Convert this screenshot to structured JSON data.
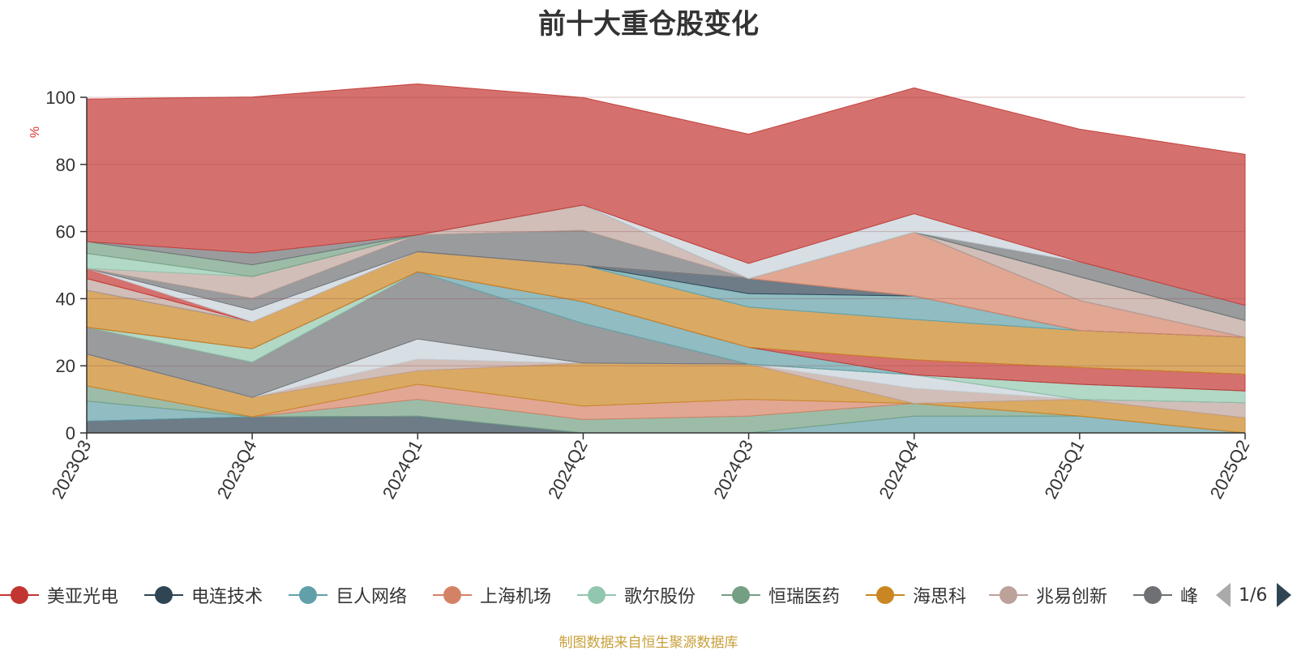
{
  "chart_data": {
    "type": "area",
    "stacked": true,
    "normalized_100": true,
    "title": "前十大重仓股变化",
    "ylabel": "%",
    "ylim": [
      0,
      100
    ],
    "yticks": [
      0,
      20,
      40,
      60,
      80,
      100
    ],
    "categories": [
      "2023Q3",
      "2023Q4",
      "2024Q1",
      "2024Q2",
      "2024Q3",
      "2024Q4",
      "2025Q1",
      "2025Q2"
    ],
    "grid": true,
    "legend_position": "bottom",
    "legend_page": "1/6",
    "legend_items": [
      {
        "name": "美亚光电",
        "color": "#c23531"
      },
      {
        "name": "电连技术",
        "color": "#2f4554"
      },
      {
        "name": "巨人网络",
        "color": "#61a0a8"
      },
      {
        "name": "上海机场",
        "color": "#d48265"
      },
      {
        "name": "歌尔股份",
        "color": "#91c7ae"
      },
      {
        "name": "恒瑞医药",
        "color": "#749f83"
      },
      {
        "name": "海思科",
        "color": "#ca8622"
      },
      {
        "name": "兆易创新",
        "color": "#bda29a"
      },
      {
        "name": "峰",
        "color": "#6e7074"
      }
    ],
    "layers": [
      {
        "color": "#2f4554",
        "values": [
          3.5,
          4.8,
          5.0,
          0,
          0,
          0,
          0,
          0
        ]
      },
      {
        "color": "#61a0a8",
        "values": [
          6.0,
          0,
          0,
          0,
          0,
          5.0,
          5.0,
          0
        ]
      },
      {
        "color": "#749f83",
        "values": [
          4.5,
          0,
          5.0,
          4.0,
          5.0,
          3.8,
          0,
          0
        ]
      },
      {
        "color": "#d48265",
        "values": [
          0,
          0,
          4.5,
          4.0,
          5.0,
          0,
          0,
          0
        ]
      },
      {
        "color": "#ca8622",
        "values": [
          9.5,
          5.8,
          4.0,
          12.8,
          10.5,
          0,
          5.0,
          4.5
        ]
      },
      {
        "color": "#bda29a",
        "values": [
          0,
          0,
          3.5,
          0,
          0,
          4.5,
          0,
          4.5
        ]
      },
      {
        "color": "#c6d1d9",
        "values": [
          0,
          0,
          6.0,
          0,
          0,
          4.0,
          0,
          0
        ]
      },
      {
        "color": "#6e7074",
        "values": [
          8.0,
          10.5,
          20.0,
          11.8,
          0,
          0,
          0,
          0
        ]
      },
      {
        "color": "#91c7ae",
        "values": [
          0,
          4.0,
          0,
          0,
          0,
          0,
          4.5,
          3.5
        ]
      },
      {
        "color": "#61a0a8",
        "values": [
          0,
          0,
          0,
          6.5,
          5.0,
          0,
          0,
          0
        ]
      },
      {
        "color": "#c23531",
        "values": [
          0,
          0,
          0,
          0,
          0,
          4.5,
          5.0,
          5.0
        ]
      },
      {
        "color": "#ca8622",
        "values": [
          11.0,
          8.0,
          6.0,
          10.8,
          12.0,
          12.0,
          11.0,
          11.0
        ]
      },
      {
        "color": "#91c7ae",
        "values": [
          0,
          0,
          0,
          0,
          0,
          0,
          0,
          0
        ]
      },
      {
        "color": "#61a0a8",
        "values": [
          0,
          0,
          0,
          0,
          4.0,
          7.0,
          0,
          0
        ]
      },
      {
        "color": "#2f4554",
        "values": [
          0,
          0,
          0,
          0,
          4.5,
          0,
          0,
          0
        ]
      },
      {
        "color": "#bda29a",
        "values": [
          3.5,
          0,
          0,
          0,
          0,
          0,
          0,
          0
        ]
      },
      {
        "color": "#d48265",
        "values": [
          0,
          0,
          0,
          0,
          0,
          19.0,
          9.0,
          0
        ]
      },
      {
        "color": "#c23531",
        "values": [
          3.0,
          0,
          0,
          0,
          0,
          0,
          0,
          0
        ]
      },
      {
        "color": "#c6d1d9",
        "values": [
          0,
          3.5,
          0,
          0,
          0,
          0,
          0,
          0
        ]
      },
      {
        "color": "#6e7074",
        "values": [
          0,
          3.5,
          5.0,
          10.5,
          0,
          0,
          0,
          0
        ]
      },
      {
        "color": "#bda29a",
        "values": [
          0,
          6.5,
          0,
          7.5,
          0,
          0,
          7.0,
          5.0
        ]
      },
      {
        "color": "#91c7ae",
        "values": [
          4.5,
          0,
          0,
          0,
          0,
          0,
          0,
          0
        ]
      },
      {
        "color": "#749f83",
        "values": [
          3.5,
          3.5,
          0,
          0,
          0,
          0,
          0,
          0
        ]
      },
      {
        "color": "#6e7074",
        "values": [
          0,
          3.5,
          0,
          0,
          0,
          0,
          4.5,
          4.5
        ]
      },
      {
        "color": "#c6d1d9",
        "values": [
          0,
          0,
          0,
          0,
          4.5,
          5.5,
          0,
          0
        ]
      },
      {
        "color": "#c23531",
        "values": [
          42.5,
          46.5,
          45.0,
          32.0,
          38.5,
          37.5,
          39.5,
          45.0
        ]
      }
    ]
  },
  "footer": {
    "source": "制图数据来自恒生聚源数据库"
  }
}
